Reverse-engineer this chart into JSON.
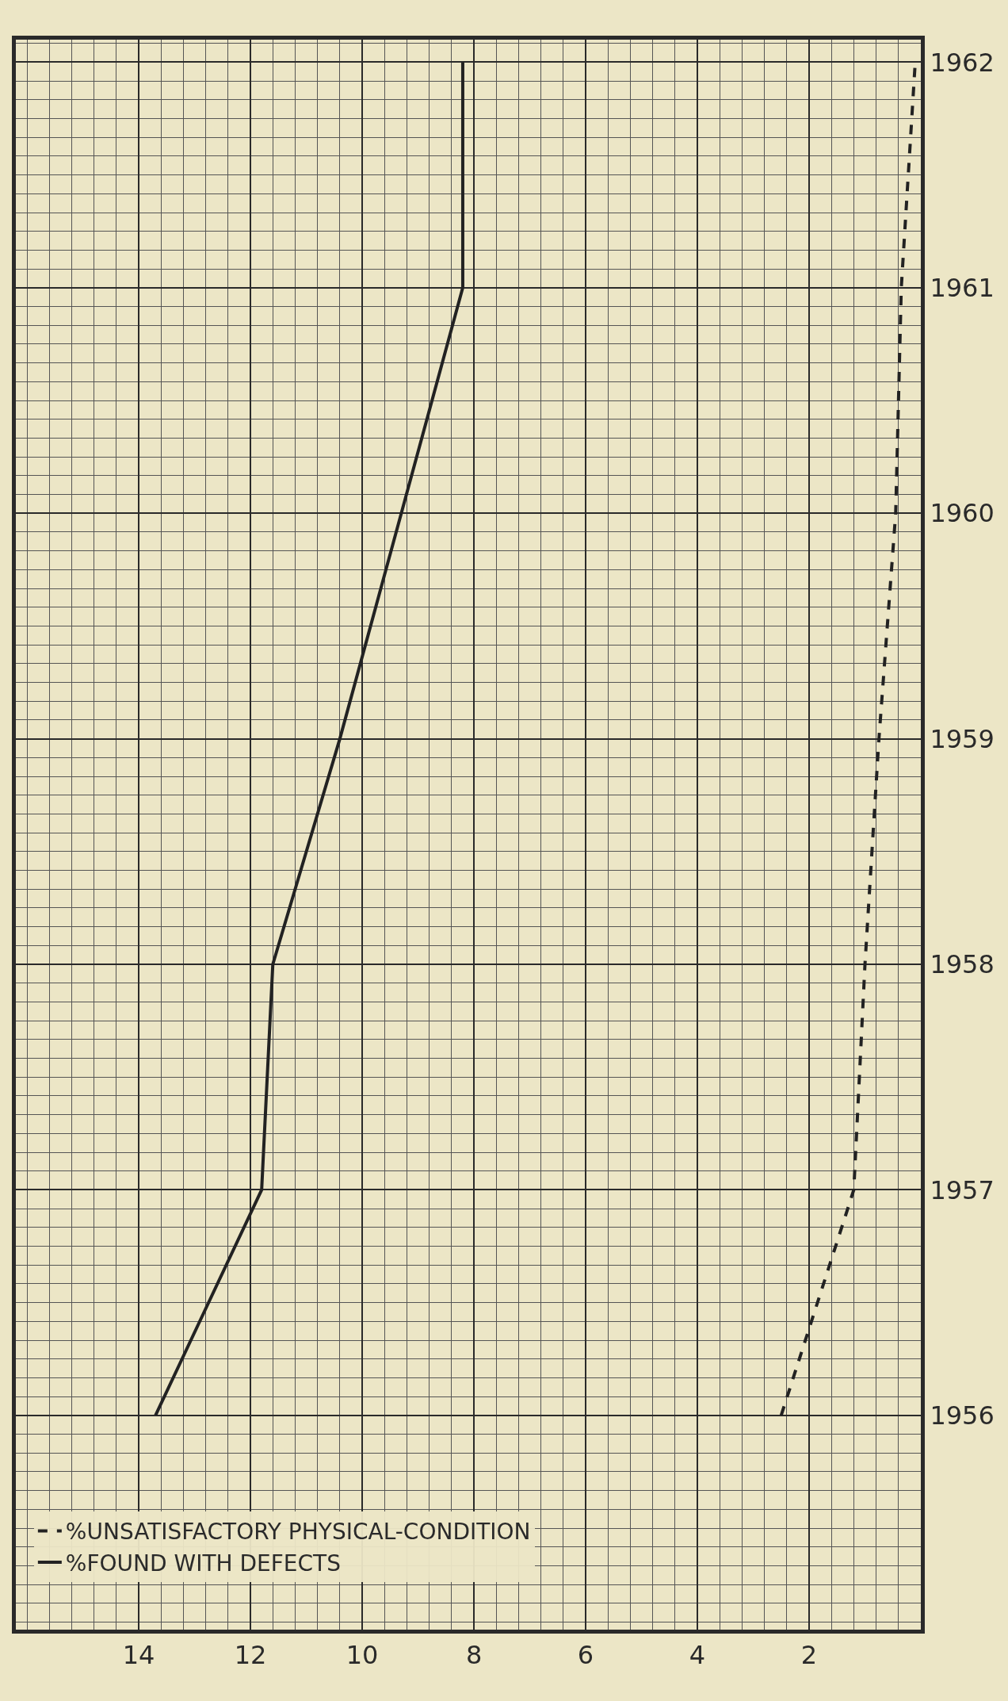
{
  "chart_data": {
    "type": "line",
    "orientation": "horizontal",
    "x": [
      1956,
      1957,
      1958,
      1959,
      1960,
      1961,
      1962
    ],
    "series": [
      {
        "name": "%UNSATISFACTORY PHYSICAL-CONDITION",
        "color": "#222222",
        "line_style": "dashed",
        "values": [
          2.5,
          1.2,
          1.0,
          0.75,
          0.45,
          0.35,
          0.1
        ]
      },
      {
        "name": "%FOUND WITH DEFECTS",
        "color": "#222222",
        "line_style": "solid",
        "values": [
          13.7,
          11.8,
          11.6,
          10.4,
          9.3,
          8.2,
          8.2
        ]
      }
    ],
    "xlim": [
      16.2,
      0
    ],
    "xticks": [
      14,
      12,
      10,
      8,
      6,
      4,
      2
    ],
    "ylim": [
      1955.05,
      1962.1
    ],
    "yticks": [
      1956,
      1957,
      1958,
      1959,
      1960,
      1961,
      1962
    ],
    "grid": true,
    "legend": "bottom left",
    "marker": "none"
  }
}
